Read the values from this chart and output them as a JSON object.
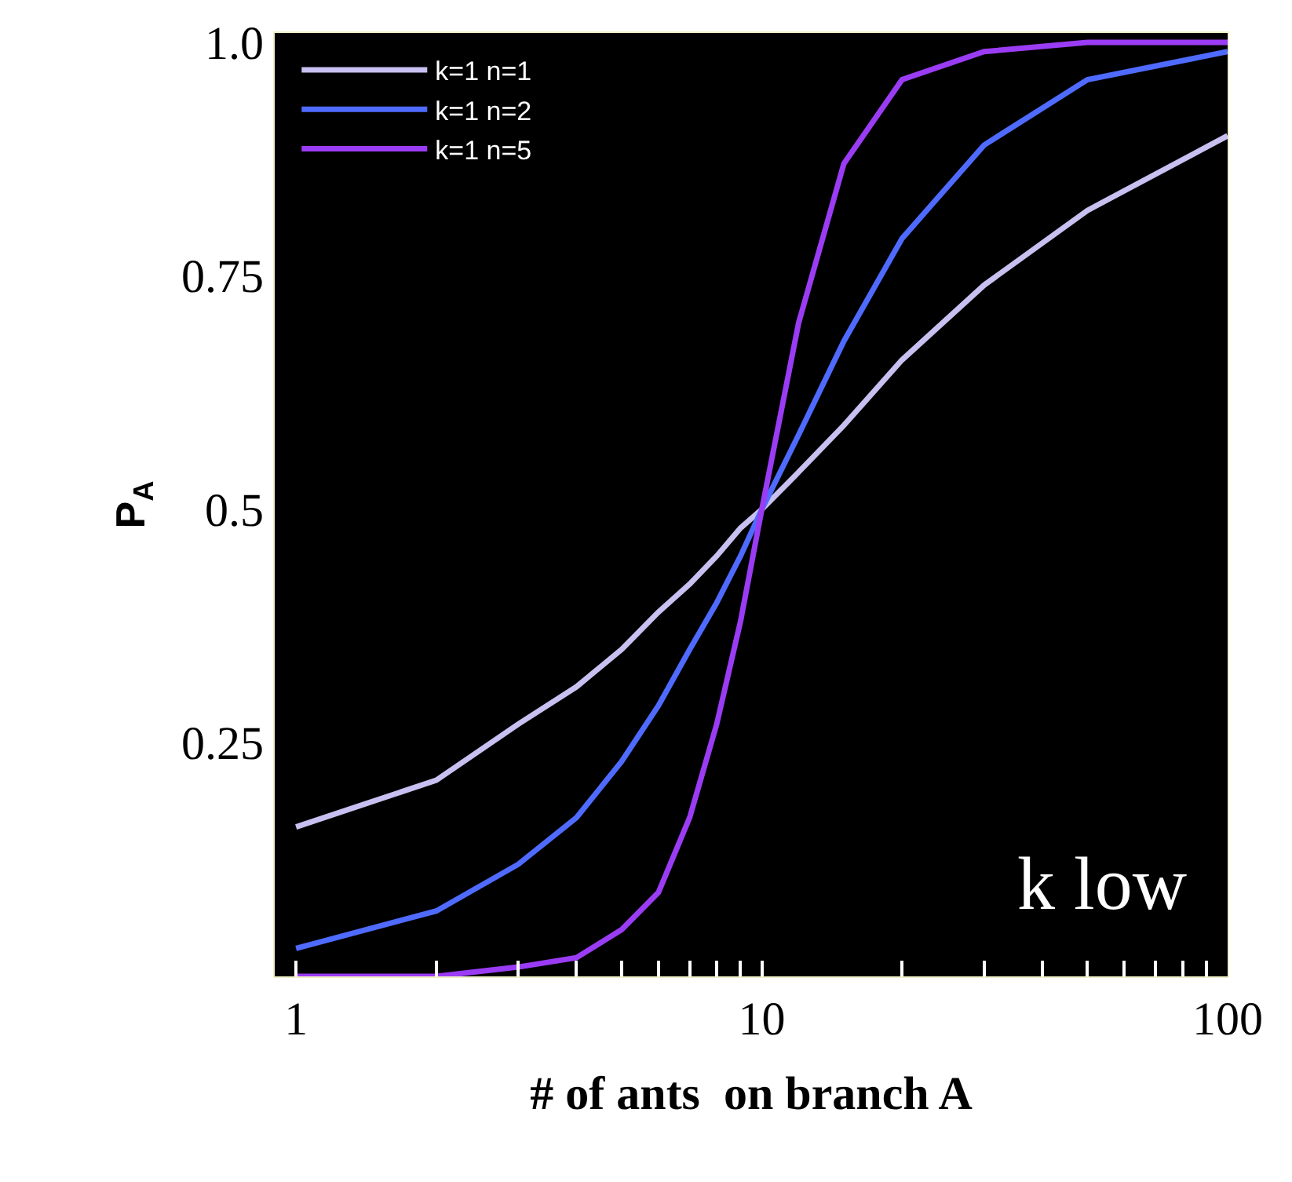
{
  "chart_data": {
    "type": "line",
    "xlabel": "# of ants  on branch A",
    "ylabel": "P$_{A}$",
    "x": [
      1,
      2,
      3,
      4,
      5,
      6,
      7,
      8,
      9,
      10,
      12,
      15,
      20,
      30,
      50,
      100
    ],
    "series": [
      {
        "name": "k=1 n=1",
        "color": "#c8c0f0",
        "values": [
          0.16,
          0.21,
          0.27,
          0.31,
          0.35,
          0.39,
          0.42,
          0.45,
          0.48,
          0.5,
          0.54,
          0.59,
          0.66,
          0.74,
          0.82,
          0.9
        ]
      },
      {
        "name": "k=1 n=2",
        "color": "#4f6bff",
        "values": [
          0.03,
          0.07,
          0.12,
          0.17,
          0.23,
          0.29,
          0.35,
          0.4,
          0.45,
          0.5,
          0.58,
          0.68,
          0.79,
          0.89,
          0.96,
          0.99
        ]
      },
      {
        "name": "k=1 n=5",
        "color": "#9b3cf5",
        "values": [
          0.0,
          0.0,
          0.01,
          0.02,
          0.05,
          0.09,
          0.17,
          0.27,
          0.38,
          0.5,
          0.7,
          0.87,
          0.96,
          0.99,
          1.0,
          1.0
        ]
      }
    ],
    "log": "x",
    "xlim": [
      0.9,
      100
    ],
    "xticks": [
      1,
      {
        "value": 2,
        "label": null
      },
      {
        "value": 3,
        "label": null
      },
      {
        "value": 4,
        "label": null
      },
      {
        "value": 5,
        "label": null
      },
      {
        "value": 6,
        "label": null
      },
      {
        "value": 7,
        "label": null
      },
      {
        "value": 8,
        "label": null
      },
      {
        "value": 9,
        "label": null
      },
      10,
      {
        "value": 20,
        "label": null
      },
      {
        "value": 30,
        "label": null
      },
      {
        "value": 40,
        "label": null
      },
      {
        "value": 50,
        "label": null
      },
      {
        "value": 60,
        "label": null
      },
      {
        "value": 70,
        "label": null
      },
      {
        "value": 80,
        "label": null
      },
      {
        "value": 90,
        "label": null
      },
      100
    ],
    "ylim": [
      0,
      1.01
    ],
    "yticks": [
      0.25,
      0.5,
      0.75,
      {
        "value": 1,
        "label": "1.0"
      }
    ],
    "annotations": [
      "k low"
    ],
    "grid": false,
    "legend": "top left",
    "marker": "none",
    "line_style": "solid"
  }
}
